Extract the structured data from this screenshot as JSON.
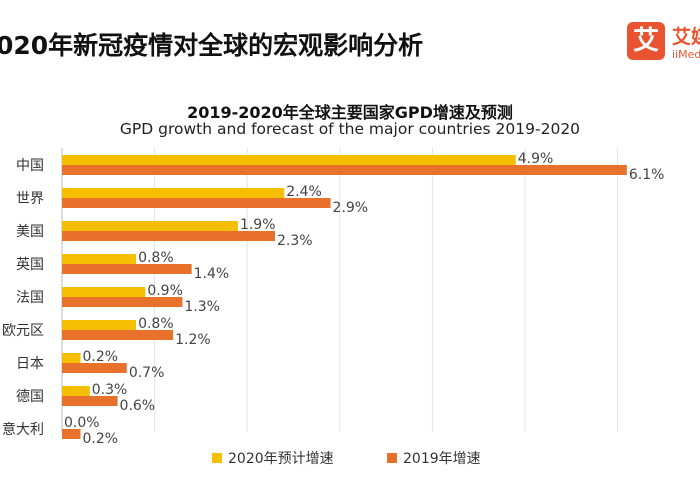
{
  "page_title": "020年新冠疫情对全球的宏观影响分析",
  "logo": {
    "mark": "艾",
    "name": "艾媒",
    "sub": "iiMedia"
  },
  "chart_data": {
    "type": "bar",
    "orientation": "horizontal",
    "title": "2019-2020年全球主要国家GPD增速及预测",
    "subtitle": "GPD growth and forecast of the major countries 2019-2020",
    "categories": [
      "中国",
      "世界",
      "美国",
      "英国",
      "法国",
      "欧元区",
      "日本",
      "德国",
      "意大利"
    ],
    "category_labels_visible": [
      "中国",
      "世界",
      "美国",
      "英国",
      "法国",
      "欧元区",
      "日本",
      "德国",
      "意大利"
    ],
    "series": [
      {
        "name": "2020年预计增速",
        "color": "#f5be00",
        "values": [
          4.9,
          2.4,
          1.9,
          0.8,
          0.9,
          0.8,
          0.2,
          0.3,
          0.0
        ],
        "labels": [
          "4.9%",
          "2.4%",
          "1.9%",
          "0.8%",
          "0.9%",
          "0.8%",
          "0.2%",
          "0.3%",
          "0.0%"
        ]
      },
      {
        "name": "2019年增速",
        "color": "#e8722c",
        "values": [
          6.1,
          2.9,
          2.3,
          1.4,
          1.3,
          1.2,
          0.7,
          0.6,
          0.2
        ],
        "labels": [
          "6.1%",
          "2.9%",
          "2.3%",
          "1.4%",
          "1.3%",
          "1.2%",
          "0.7%",
          "0.6%",
          "0.2%"
        ]
      }
    ],
    "xlim": [
      0,
      6.5
    ],
    "grid": true,
    "legend_position": "bottom"
  }
}
